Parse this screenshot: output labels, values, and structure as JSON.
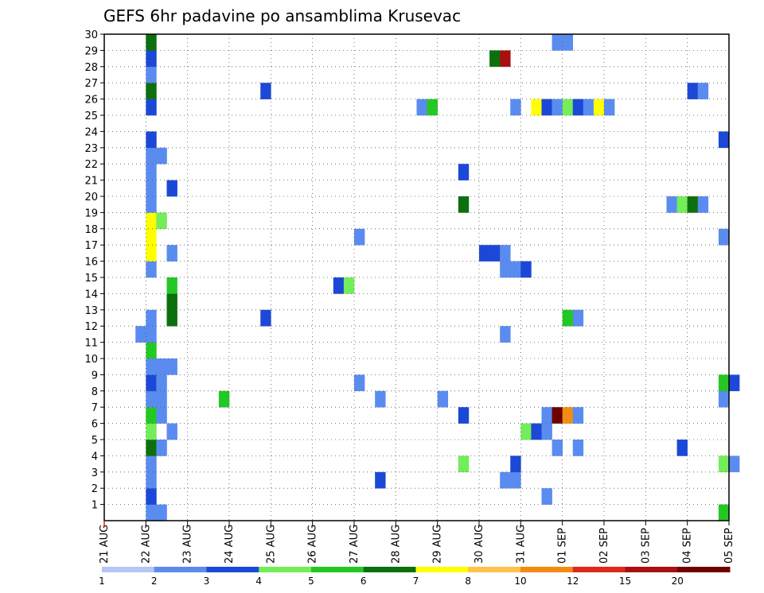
{
  "chart_data": {
    "type": "heatmap",
    "title": "GEFS 6hr padavine po ansamblima Krusevac",
    "xlabel": "",
    "ylabel": "",
    "x_axis": {
      "unit": "day",
      "range": [
        0,
        15
      ],
      "tick_labels": [
        "21 AUG",
        "22 AUG",
        "23 AUG",
        "24 AUG",
        "25 AUG",
        "26 AUG",
        "27 AUG",
        "28 AUG",
        "29 AUG",
        "30 AUG",
        "31 AUG",
        "01 SEP",
        "02 SEP",
        "03 SEP",
        "04 SEP",
        "05 SEP"
      ],
      "step": 0.25
    },
    "y_axis": {
      "range": [
        0,
        30
      ],
      "tick_labels": [
        "1",
        "2",
        "3",
        "4",
        "5",
        "6",
        "7",
        "8",
        "9",
        "10",
        "11",
        "12",
        "13",
        "14",
        "15",
        "16",
        "17",
        "18",
        "19",
        "20",
        "21",
        "22",
        "23",
        "24",
        "25",
        "26",
        "27",
        "28",
        "29",
        "30"
      ]
    },
    "grid": true,
    "legend": {
      "placement": "bottom",
      "levels": [
        "1",
        "2",
        "3",
        "4",
        "5",
        "6",
        "7",
        "8",
        "10",
        "12",
        "15",
        "20"
      ],
      "colors": [
        "#b3c6f5",
        "#5a8cf0",
        "#1c48d8",
        "#73ed5a",
        "#23c823",
        "#0c700c",
        "#ffff00",
        "#ffc24a",
        "#f58c12",
        "#e0281a",
        "#aa1010",
        "#6e0000"
      ]
    },
    "cells": [
      {
        "x": 1.0,
        "y": 0,
        "c": 1
      },
      {
        "x": 1.25,
        "y": 0,
        "c": 1
      },
      {
        "x": 14.75,
        "y": 0,
        "c": 4
      },
      {
        "x": 1.0,
        "y": 1,
        "c": 2
      },
      {
        "x": 10.5,
        "y": 1,
        "c": 1
      },
      {
        "x": 1.0,
        "y": 2,
        "c": 1
      },
      {
        "x": 6.5,
        "y": 2,
        "c": 2
      },
      {
        "x": 9.5,
        "y": 2,
        "c": 1
      },
      {
        "x": 9.75,
        "y": 2,
        "c": 1
      },
      {
        "x": 1.0,
        "y": 3,
        "c": 1
      },
      {
        "x": 8.5,
        "y": 3,
        "c": 3
      },
      {
        "x": 9.75,
        "y": 3,
        "c": 2
      },
      {
        "x": 14.75,
        "y": 3,
        "c": 3
      },
      {
        "x": 15.0,
        "y": 3,
        "c": 1
      },
      {
        "x": 1.0,
        "y": 4,
        "c": 5
      },
      {
        "x": 1.25,
        "y": 4,
        "c": 1
      },
      {
        "x": 10.75,
        "y": 4,
        "c": 1
      },
      {
        "x": 11.25,
        "y": 4,
        "c": 1
      },
      {
        "x": 13.75,
        "y": 4,
        "c": 2
      },
      {
        "x": 1.0,
        "y": 5,
        "c": 3
      },
      {
        "x": 1.5,
        "y": 5,
        "c": 1
      },
      {
        "x": 10.0,
        "y": 5,
        "c": 3
      },
      {
        "x": 10.25,
        "y": 5,
        "c": 2
      },
      {
        "x": 10.5,
        "y": 5,
        "c": 1
      },
      {
        "x": 1.0,
        "y": 6,
        "c": 4
      },
      {
        "x": 1.25,
        "y": 6,
        "c": 1
      },
      {
        "x": 8.5,
        "y": 6,
        "c": 2
      },
      {
        "x": 10.5,
        "y": 6,
        "c": 1
      },
      {
        "x": 10.75,
        "y": 6,
        "c": 11
      },
      {
        "x": 11.0,
        "y": 6,
        "c": 8
      },
      {
        "x": 11.25,
        "y": 6,
        "c": 1
      },
      {
        "x": 1.0,
        "y": 7,
        "c": 1
      },
      {
        "x": 1.25,
        "y": 7,
        "c": 1
      },
      {
        "x": 2.75,
        "y": 7,
        "c": 4
      },
      {
        "x": 6.5,
        "y": 7,
        "c": 1
      },
      {
        "x": 8.0,
        "y": 7,
        "c": 1
      },
      {
        "x": 14.75,
        "y": 7,
        "c": 1
      },
      {
        "x": 1.0,
        "y": 8,
        "c": 2
      },
      {
        "x": 1.25,
        "y": 8,
        "c": 1
      },
      {
        "x": 6.0,
        "y": 8,
        "c": 1
      },
      {
        "x": 14.75,
        "y": 8,
        "c": 4
      },
      {
        "x": 15.0,
        "y": 8,
        "c": 2
      },
      {
        "x": 1.0,
        "y": 9,
        "c": 1
      },
      {
        "x": 1.25,
        "y": 9,
        "c": 1
      },
      {
        "x": 1.5,
        "y": 9,
        "c": 1
      },
      {
        "x": 1.0,
        "y": 10,
        "c": 4
      },
      {
        "x": 0.75,
        "y": 11,
        "c": 1
      },
      {
        "x": 1.0,
        "y": 11,
        "c": 1
      },
      {
        "x": 9.5,
        "y": 11,
        "c": 1
      },
      {
        "x": 1.0,
        "y": 12,
        "c": 1
      },
      {
        "x": 1.5,
        "y": 12,
        "c": 5
      },
      {
        "x": 3.75,
        "y": 12,
        "c": 2
      },
      {
        "x": 11.0,
        "y": 12,
        "c": 4
      },
      {
        "x": 11.25,
        "y": 12,
        "c": 1
      },
      {
        "x": 1.5,
        "y": 13,
        "c": 5
      },
      {
        "x": 1.5,
        "y": 14,
        "c": 4
      },
      {
        "x": 5.5,
        "y": 14,
        "c": 2
      },
      {
        "x": 5.75,
        "y": 14,
        "c": 3
      },
      {
        "x": 1.0,
        "y": 15,
        "c": 1
      },
      {
        "x": 9.5,
        "y": 15,
        "c": 1
      },
      {
        "x": 9.75,
        "y": 15,
        "c": 1
      },
      {
        "x": 10.0,
        "y": 15,
        "c": 2
      },
      {
        "x": 1.0,
        "y": 16,
        "c": 6
      },
      {
        "x": 1.5,
        "y": 16,
        "c": 1
      },
      {
        "x": 9.0,
        "y": 16,
        "c": 2
      },
      {
        "x": 9.25,
        "y": 16,
        "c": 2
      },
      {
        "x": 9.5,
        "y": 16,
        "c": 1
      },
      {
        "x": 1.0,
        "y": 17,
        "c": 6
      },
      {
        "x": 6.0,
        "y": 17,
        "c": 1
      },
      {
        "x": 14.75,
        "y": 17,
        "c": 1
      },
      {
        "x": 1.0,
        "y": 18,
        "c": 6
      },
      {
        "x": 1.25,
        "y": 18,
        "c": 3
      },
      {
        "x": 1.0,
        "y": 19,
        "c": 1
      },
      {
        "x": 8.5,
        "y": 19,
        "c": 5
      },
      {
        "x": 13.5,
        "y": 19,
        "c": 1
      },
      {
        "x": 13.75,
        "y": 19,
        "c": 3
      },
      {
        "x": 14.0,
        "y": 19,
        "c": 5
      },
      {
        "x": 14.25,
        "y": 19,
        "c": 1
      },
      {
        "x": 1.0,
        "y": 20,
        "c": 1
      },
      {
        "x": 1.5,
        "y": 20,
        "c": 2
      },
      {
        "x": 1.0,
        "y": 21,
        "c": 1
      },
      {
        "x": 8.5,
        "y": 21,
        "c": 2
      },
      {
        "x": 1.0,
        "y": 22,
        "c": 1
      },
      {
        "x": 1.25,
        "y": 22,
        "c": 1
      },
      {
        "x": 1.0,
        "y": 23,
        "c": 2
      },
      {
        "x": 14.75,
        "y": 23,
        "c": 2
      },
      {
        "x": 1.0,
        "y": 25,
        "c": 2
      },
      {
        "x": 7.5,
        "y": 25,
        "c": 1
      },
      {
        "x": 7.75,
        "y": 25,
        "c": 4
      },
      {
        "x": 9.75,
        "y": 25,
        "c": 1
      },
      {
        "x": 10.25,
        "y": 25,
        "c": 6
      },
      {
        "x": 10.5,
        "y": 25,
        "c": 2
      },
      {
        "x": 10.75,
        "y": 25,
        "c": 1
      },
      {
        "x": 11.0,
        "y": 25,
        "c": 3
      },
      {
        "x": 11.25,
        "y": 25,
        "c": 2
      },
      {
        "x": 11.5,
        "y": 25,
        "c": 1
      },
      {
        "x": 11.75,
        "y": 25,
        "c": 6
      },
      {
        "x": 12.0,
        "y": 25,
        "c": 1
      },
      {
        "x": 1.0,
        "y": 26,
        "c": 5
      },
      {
        "x": 3.75,
        "y": 26,
        "c": 2
      },
      {
        "x": 14.0,
        "y": 26,
        "c": 2
      },
      {
        "x": 14.25,
        "y": 26,
        "c": 1
      },
      {
        "x": 1.0,
        "y": 27,
        "c": 1
      },
      {
        "x": 1.0,
        "y": 28,
        "c": 2
      },
      {
        "x": 9.25,
        "y": 28,
        "c": 5
      },
      {
        "x": 9.5,
        "y": 28,
        "c": 10
      },
      {
        "x": 1.0,
        "y": 29,
        "c": 5
      },
      {
        "x": 10.75,
        "y": 29,
        "c": 1
      },
      {
        "x": 11.0,
        "y": 29,
        "c": 1
      }
    ]
  }
}
